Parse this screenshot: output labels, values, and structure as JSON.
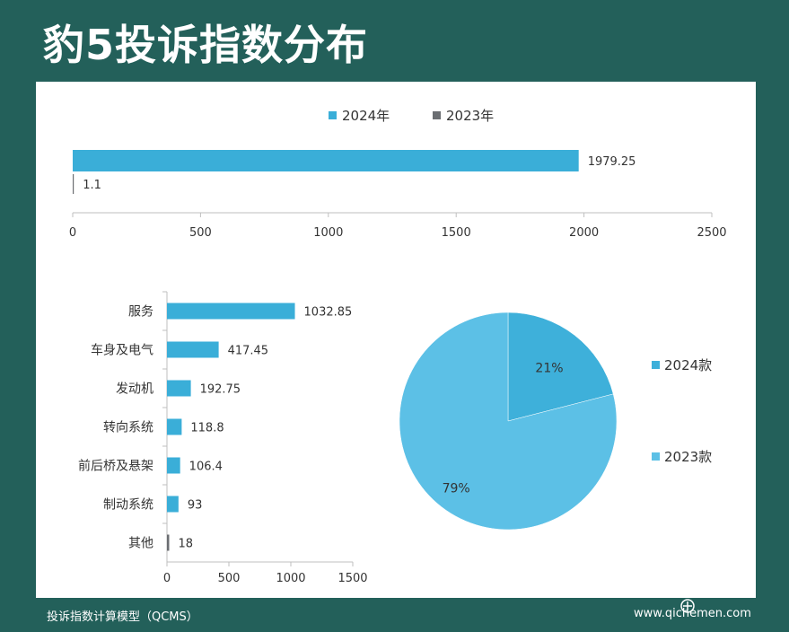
{
  "title": "豹5投诉指数分布",
  "footer": "投诉指数计算模型（QCMS）",
  "watermark": "www.qichemen.com",
  "colors": {
    "background": "#23605a",
    "s2024": "#3aaed8",
    "s2023": "#6b6e72",
    "pie_small": "#3eb0da",
    "pie_large": "#5cc0e6"
  },
  "chart_data": [
    {
      "type": "bar",
      "orientation": "horizontal",
      "legend_position": "top",
      "series": [
        {
          "name": "2024年",
          "values": [
            1979.25
          ]
        },
        {
          "name": "2023年",
          "values": [
            1.1
          ]
        }
      ],
      "xlim": [
        0,
        2500
      ],
      "xticks": [
        0,
        500,
        1000,
        1500,
        2000,
        2500
      ],
      "grid": false
    },
    {
      "type": "bar",
      "orientation": "horizontal",
      "categories": [
        "服务",
        "车身及电气",
        "发动机",
        "转向系统",
        "前后桥及悬架",
        "制动系统",
        "其他"
      ],
      "values": [
        1032.85,
        417.45,
        192.75,
        118.8,
        106.4,
        93,
        18
      ],
      "highlight_last_color": "#6b6e72",
      "xlim": [
        0,
        1500
      ],
      "xticks": [
        0,
        500,
        1000,
        1500
      ],
      "grid": false
    },
    {
      "type": "pie",
      "legend_position": "right",
      "slices": [
        {
          "name": "2024款",
          "value": 21,
          "label": "21%"
        },
        {
          "name": "2023款",
          "value": 79,
          "label": "79%"
        }
      ]
    }
  ]
}
